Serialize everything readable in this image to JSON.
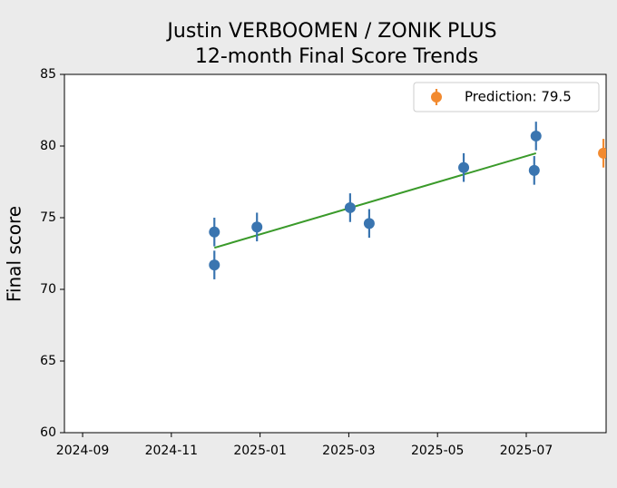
{
  "chart_data": {
    "type": "errorbar",
    "title": "Justin VERBOOMEN / ZONIK PLUS",
    "subtitle": "12-month Final Score Trends",
    "ylabel": "Final score",
    "xlim": [
      -0.41,
      11.8
    ],
    "xticks": [
      {
        "value": 0,
        "label": "2024-09"
      },
      {
        "value": 2,
        "label": "2024-11"
      },
      {
        "value": 4,
        "label": "2025-01"
      },
      {
        "value": 6,
        "label": "2025-03"
      },
      {
        "value": 8,
        "label": "2025-05"
      },
      {
        "value": 10,
        "label": "2025-07"
      }
    ],
    "ylim": [
      60,
      85
    ],
    "yticks": [
      60,
      65,
      70,
      75,
      80,
      85
    ],
    "series": [
      {
        "color": "#3a75b0",
        "x": [
          2.97,
          2.97,
          3.93,
          6.03,
          6.46,
          8.59,
          10.18,
          10.22
        ],
        "values": [
          74.0,
          71.7,
          74.35,
          75.7,
          74.6,
          78.5,
          78.3,
          80.7
        ],
        "errors": [
          1.0,
          1.0,
          1.0,
          1.0,
          1.0,
          1.0,
          1.0,
          1.0
        ]
      },
      {
        "name": "Prediction: 79.5",
        "color": "#f28a30",
        "x": [
          11.74
        ],
        "values": [
          79.5
        ],
        "errors": [
          1.0
        ]
      }
    ],
    "trend": {
      "color": "#3a9a2a",
      "x": [
        2.97,
        10.22
      ],
      "values": [
        72.9,
        79.5
      ]
    },
    "legend": "upper right"
  }
}
